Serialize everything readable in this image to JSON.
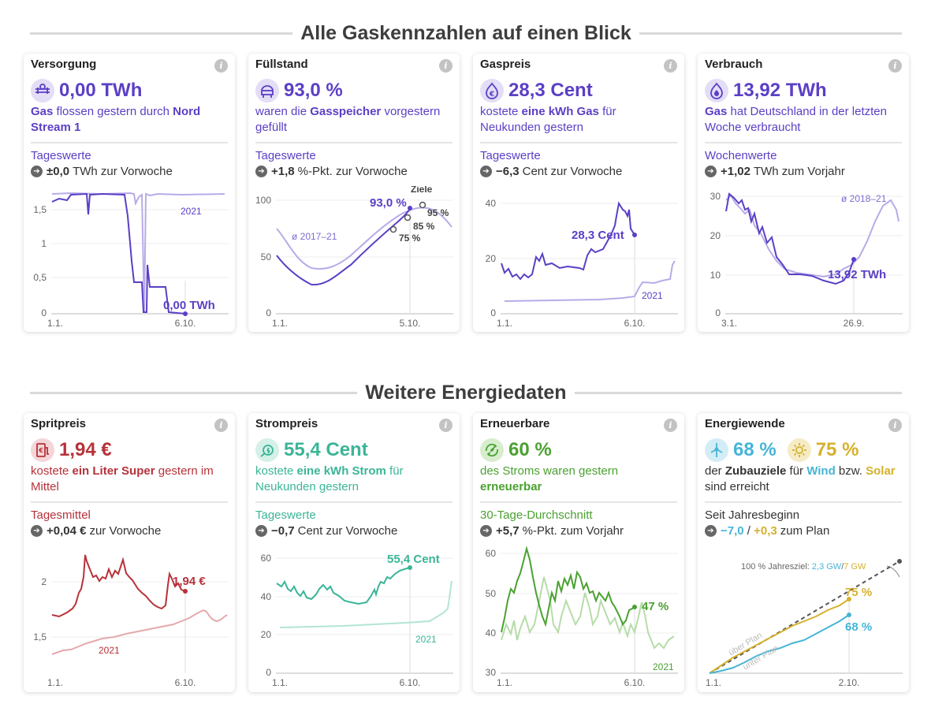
{
  "sections": [
    {
      "title": "Alle Gaskennzahlen auf einen Blick"
    },
    {
      "title": "Weitere Energiedaten"
    }
  ],
  "colors": {
    "purple": "#5b3fc5",
    "purple_light": "#b8abe8",
    "red": "#b7323a",
    "red_light": "#e4a9ad",
    "teal": "#3bb597",
    "teal_light": "#b3e4d7",
    "green": "#4aa131",
    "green_light": "#b6dca9",
    "blue": "#46b5d6",
    "yellow": "#d5b12c",
    "grey": "#555555"
  },
  "cards": {
    "versorgung": {
      "title": "Versorgung",
      "info": "i",
      "icon": "pipeline-icon",
      "value": "0,00 TWh",
      "desc": {
        "p1": "Gas",
        "p2": " flossen gestern durch ",
        "p3": "Nord Stream 1"
      },
      "sublabel": "Tageswerte",
      "delta_value": "±0,0",
      "delta_text": "TWh zur Vorwoche"
    },
    "fuellstand": {
      "title": "Füllstand",
      "info": "i",
      "icon": "storage-tank-icon",
      "value": "93,0 %",
      "desc": {
        "p1": "waren die ",
        "p2": "Gasspeicher",
        "p3": " vorgestern gefüllt"
      },
      "sublabel": "Tageswerte",
      "delta_value": "+1,8",
      "delta_text": "%-Pkt. zur Vorwoche"
    },
    "gaspreis": {
      "title": "Gaspreis",
      "info": "i",
      "icon": "euro-flame-icon",
      "value": "28,3 Cent",
      "desc": {
        "p1": "kostete ",
        "p2": "eine kWh Gas",
        "p3": " für Neukunden gestern"
      },
      "sublabel": "Tageswerte",
      "delta_value": "−6,3",
      "delta_text": "Cent zur Vorwoche"
    },
    "verbrauch": {
      "title": "Verbrauch",
      "info": "i",
      "icon": "flame-icon",
      "value": "13,92 TWh",
      "desc": {
        "p1": "Gas",
        "p2": " hat Deutschland in der letzten Woche verbraucht"
      },
      "sublabel": "Wochenwerte",
      "delta_value": "+1,02",
      "delta_text": "TWh zum Vorjahr"
    },
    "spritpreis": {
      "title": "Spritpreis",
      "info": "i",
      "icon": "fuel-pump-icon",
      "value": "1,94 €",
      "desc": {
        "p1": "kostete ",
        "p2": "ein Liter Super",
        "p3": " gestern im Mittel"
      },
      "sublabel": "Tagesmittel",
      "delta_value": "+0,04 €",
      "delta_text": "zur Vorwoche"
    },
    "strompreis": {
      "title": "Strompreis",
      "info": "i",
      "icon": "plug-icon",
      "value": "55,4 Cent",
      "desc": {
        "p1": "kostete ",
        "p2": "eine kWh Strom",
        "p3": " für Neukunden gestern"
      },
      "sublabel": "Tageswerte",
      "delta_value": "−0,7",
      "delta_text": "Cent zur Vorwoche"
    },
    "erneuerbare": {
      "title": "Erneuerbare",
      "info": "i",
      "icon": "recycle-leaf-icon",
      "value": "60 %",
      "desc": {
        "p1": "des Stroms waren gestern ",
        "p2": "erneuerbar"
      },
      "sublabel": "30-Tage-Durchschnitt",
      "delta_value": "+5,7",
      "delta_text": "%-Pkt. zum Vorjahr"
    },
    "energiewende": {
      "title": "Energiewende",
      "info": "i",
      "icon_wind": "wind-turbine-icon",
      "icon_sun": "sun-icon",
      "value_wind": "68 %",
      "value_sun": "75 %",
      "desc": {
        "p1": "der ",
        "p2": "Zubauziele",
        "p3": " für ",
        "p4": "Wind",
        "p5": " bzw. ",
        "p6": "Solar",
        "p7": " sind erreicht"
      },
      "sublabel": "Seit Jahresbeginn",
      "delta_wind": "−7,0",
      "delta_sep": " / ",
      "delta_sun": "+0,3",
      "delta_text": "zum Plan"
    }
  },
  "chart_data": [
    {
      "id": "versorgung",
      "type": "line",
      "y_ticks": [
        "1,5",
        "1",
        "0,5",
        "0"
      ],
      "x_ticks": [
        "1.1.",
        "6.10."
      ],
      "series": [
        {
          "name": "2021",
          "values_desc": "around 1,75 all year"
        },
        {
          "values_desc": "about 1,7 until July, then 0,3, then 0"
        }
      ],
      "labels": {
        "series_2021": "2021",
        "end": "0,00 TWh"
      }
    },
    {
      "id": "fuellstand",
      "type": "line",
      "y_ticks": [
        "100",
        "50",
        "0"
      ],
      "x_ticks": [
        "1.1.",
        "5.10."
      ],
      "series": [
        {
          "name": "ø 2017–21"
        },
        {
          "values_desc": "from 54 to 93"
        }
      ],
      "labels": {
        "avg": "ø 2017–21",
        "end": "93,0 %",
        "targets": "Ziele",
        "t75": "75 %",
        "t85": "85 %",
        "t95": "95 %"
      }
    },
    {
      "id": "gaspreis",
      "type": "line",
      "y_ticks": [
        "40",
        "20",
        "0"
      ],
      "x_ticks": [
        "1.1.",
        "6.10."
      ],
      "series": [
        {
          "name": "2021"
        },
        {
          "values_desc": "from 18 to 28,3 with peak near 40"
        }
      ],
      "labels": {
        "series_2021": "2021",
        "end": "28,3 Cent"
      }
    },
    {
      "id": "verbrauch",
      "type": "line",
      "y_ticks": [
        "30",
        "20",
        "10",
        "0"
      ],
      "x_ticks": [
        "3.1.",
        "26.9."
      ],
      "series": [
        {
          "name": "ø 2018–21"
        },
        {
          "values_desc": "from 30 to 13,92"
        }
      ],
      "labels": {
        "avg": "ø 2018–21",
        "end": "13,92 TWh"
      }
    },
    {
      "id": "spritpreis",
      "type": "line",
      "y_ticks": [
        "2",
        "1,5"
      ],
      "x_ticks": [
        "1.1.",
        "6.10."
      ],
      "series": [
        {
          "name": "2021"
        },
        {
          "values_desc": "from 1,72 to 1,94 with peaks near 2,2"
        }
      ],
      "labels": {
        "series_2021": "2021",
        "end": "1,94 €"
      }
    },
    {
      "id": "strompreis",
      "type": "line",
      "y_ticks": [
        "60",
        "40",
        "20",
        "0"
      ],
      "x_ticks": [
        "1.1.",
        "6.10."
      ],
      "series": [
        {
          "name": "2021"
        },
        {
          "values_desc": "from 47 to 55,4"
        }
      ],
      "labels": {
        "series_2021": "2021",
        "end": "55,4 Cent"
      }
    },
    {
      "id": "erneuerbare",
      "type": "line",
      "y_ticks": [
        "60",
        "50",
        "40",
        "30"
      ],
      "x_ticks": [
        "1.1.",
        "6.10."
      ],
      "series": [
        {
          "name": "2021"
        },
        {
          "values_desc": "between 40 and 60, ends at 47"
        }
      ],
      "labels": {
        "series_2021": "2021",
        "end": "47 %"
      }
    },
    {
      "id": "energiewende",
      "type": "line",
      "x_ticks": [
        "1.1.",
        "2.10."
      ],
      "series": [
        {
          "name": "Wind",
          "end": "68 %"
        },
        {
          "name": "Solar",
          "end": "75 %"
        }
      ],
      "labels": {
        "goal_prefix": "100 % Jahresziel: ",
        "goal_wind": "2,3 GW",
        "goal_sep": "/",
        "goal_sun": "7 GW",
        "above": "über Plan",
        "below": "unter Plan",
        "end_sun": "75 %",
        "end_wind": "68 %"
      }
    }
  ]
}
